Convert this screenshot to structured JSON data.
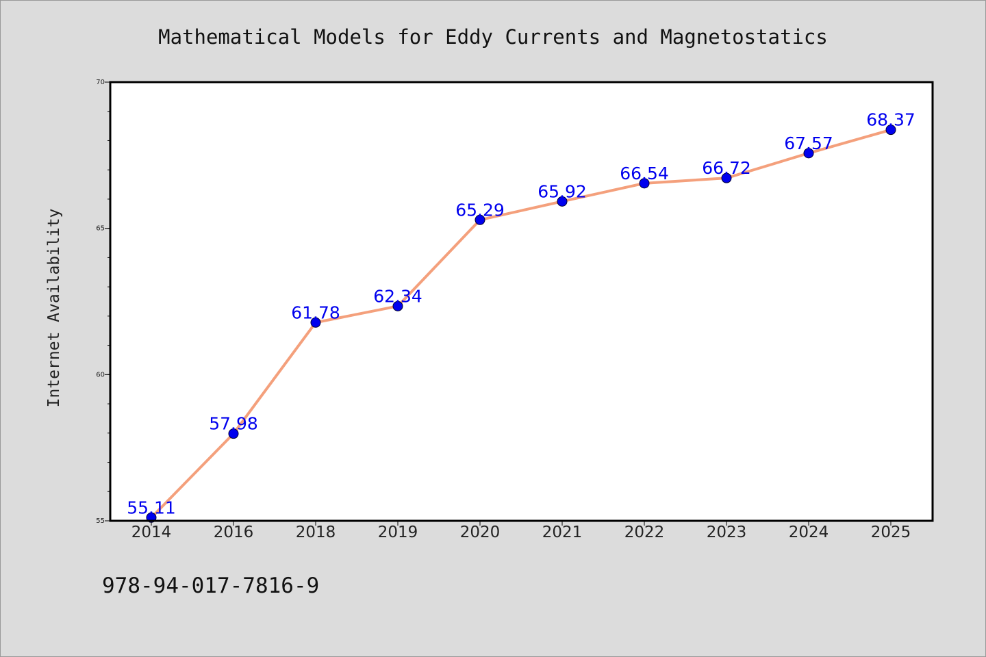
{
  "chart_data": {
    "type": "line",
    "title": "Mathematical Models for Eddy Currents and Magnetostatics",
    "xlabel": "",
    "ylabel": "Internet Availability",
    "categories": [
      "2014",
      "2016",
      "2018",
      "2019",
      "2020",
      "2021",
      "2022",
      "2023",
      "2024",
      "2025"
    ],
    "series": [
      {
        "values": [
          55.11,
          57.98,
          61.78,
          62.34,
          65.29,
          65.92,
          66.54,
          66.72,
          67.57,
          68.37
        ]
      }
    ],
    "data_labels": [
      "55.11",
      "57.98",
      "61.78",
      "62.34",
      "65.29",
      "65.92",
      "66.54",
      "66.72",
      "67.57",
      "68.37"
    ],
    "ylim": [
      55,
      70
    ],
    "y_ticks": [
      55,
      60,
      65,
      70
    ],
    "y_minor_step": 1,
    "grid": false,
    "legend": "none",
    "colors": {
      "line": "#f4a07c",
      "marker": "#0000ee",
      "data_label": "#0000ee",
      "figure_background": "#dcdcdc",
      "plot_background": "#ffffff",
      "axes_border": "#000000"
    }
  },
  "annotation": {
    "isbn": "978-94-017-7816-9"
  }
}
